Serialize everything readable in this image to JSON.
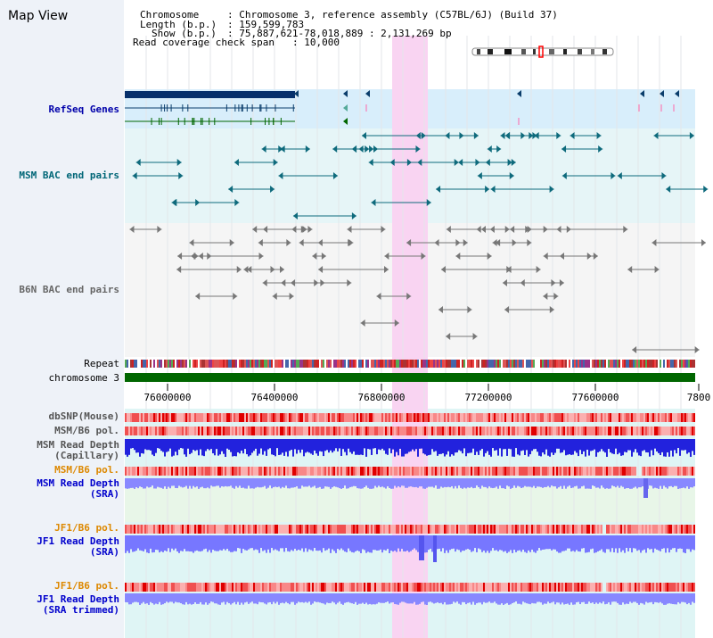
{
  "header": {
    "view_title": "Map View",
    "chromosome_label": "Chromosome",
    "chromosome_value": ": Chromosome 3, reference assembly (C57BL/6J) (Build 37)",
    "length_label": "Length (b.p.)",
    "length_value": ": 159,599,783",
    "show_label": "Show (b.p.)",
    "show_value": ": 75,887,621-78,018,889 : 2,131,269 bp",
    "read_cov_label": "Read coverage check span",
    "read_cov_value": ": 10,000"
  },
  "tracks": {
    "refseq": "RefSeq Genes",
    "msm_bac": "MSM BAC end pairs",
    "b6n_bac": "B6N BAC end pairs",
    "repeat": "Repeat",
    "chromosome": "chromosome 3",
    "dbsnp": "dbSNP(Mouse)",
    "msm_b6_pol_1": "MSM/B6 pol.",
    "msm_read_depth_cap_1": "MSM Read Depth",
    "msm_read_depth_cap_2": "(Capillary)",
    "msm_b6_pol_2": "MSM/B6 pol.",
    "msm_read_depth_sra_1": "MSM Read Depth",
    "msm_read_depth_sra_2": "(SRA)",
    "jf1_b6_pol_1": "JF1/B6 pol.",
    "jf1_read_depth_sra_1": "JF1 Read Depth",
    "jf1_read_depth_sra_2": "(SRA)",
    "jf1_b6_pol_2": "JF1/B6 pol.",
    "jf1_read_depth_trim_1": "JF1 Read Depth",
    "jf1_read_depth_trim_2": "(SRA trimmed)"
  },
  "axis": {
    "ticks": [
      "76000000",
      "76400000",
      "76800000",
      "77200000",
      "77600000",
      "7800"
    ],
    "range_start": 75887621,
    "range_end": 78018889
  },
  "colors": {
    "refseq_label": "#0000aa",
    "msm_bac_label": "#006677",
    "b6n_bac_label": "#666666",
    "orange_label": "#dd8800",
    "blue_label": "#0000cc",
    "highlight": "#f9d4f2",
    "chromosome_bar": "#006600"
  },
  "icons": {
    "chromosome_ideogram": "chromosome-ideogram-icon"
  }
}
